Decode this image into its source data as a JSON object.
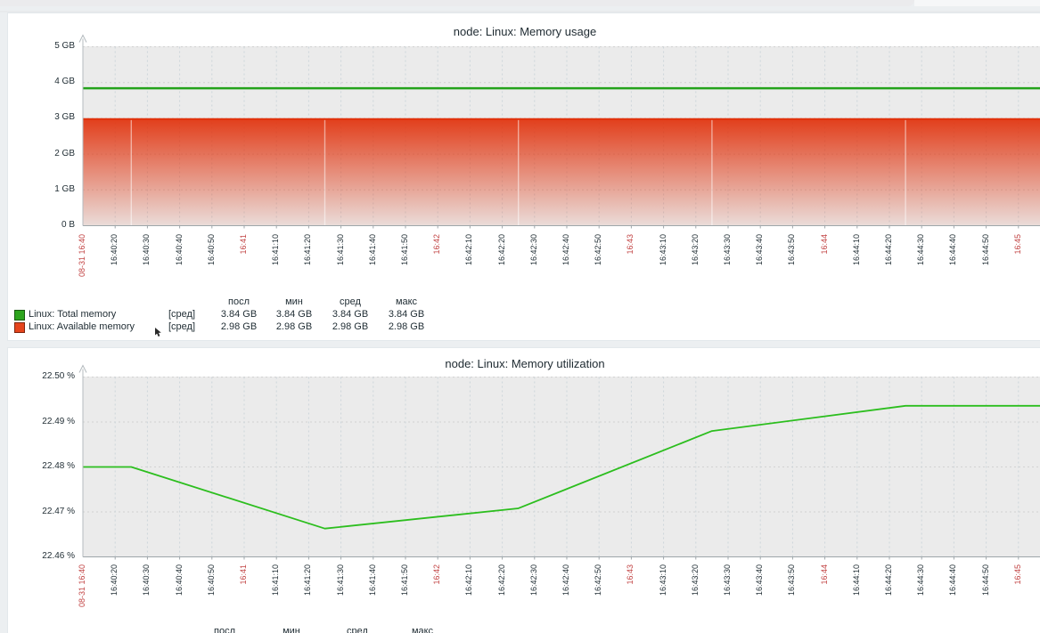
{
  "time_axis": {
    "start": "16:40:10",
    "seconds_per_tick": 10,
    "ticks": [
      {
        "t": "16:40:10",
        "label": "08-31 16:40",
        "red": true
      },
      {
        "t": "16:40:20",
        "label": "16:40:20",
        "red": false
      },
      {
        "t": "16:40:30",
        "label": "16:40:30",
        "red": false
      },
      {
        "t": "16:40:40",
        "label": "16:40:40",
        "red": false
      },
      {
        "t": "16:40:50",
        "label": "16:40:50",
        "red": false
      },
      {
        "t": "16:41:00",
        "label": "16:41",
        "red": true
      },
      {
        "t": "16:41:10",
        "label": "16:41:10",
        "red": false
      },
      {
        "t": "16:41:20",
        "label": "16:41:20",
        "red": false
      },
      {
        "t": "16:41:30",
        "label": "16:41:30",
        "red": false
      },
      {
        "t": "16:41:40",
        "label": "16:41:40",
        "red": false
      },
      {
        "t": "16:41:50",
        "label": "16:41:50",
        "red": false
      },
      {
        "t": "16:42:00",
        "label": "16:42",
        "red": true
      },
      {
        "t": "16:42:10",
        "label": "16:42:10",
        "red": false
      },
      {
        "t": "16:42:20",
        "label": "16:42:20",
        "red": false
      },
      {
        "t": "16:42:30",
        "label": "16:42:30",
        "red": false
      },
      {
        "t": "16:42:40",
        "label": "16:42:40",
        "red": false
      },
      {
        "t": "16:42:50",
        "label": "16:42:50",
        "red": false
      },
      {
        "t": "16:43:00",
        "label": "16:43",
        "red": true
      },
      {
        "t": "16:43:10",
        "label": "16:43:10",
        "red": false
      },
      {
        "t": "16:43:20",
        "label": "16:43:20",
        "red": false
      },
      {
        "t": "16:43:30",
        "label": "16:43:30",
        "red": false
      },
      {
        "t": "16:43:40",
        "label": "16:43:40",
        "red": false
      },
      {
        "t": "16:43:50",
        "label": "16:43:50",
        "red": false
      },
      {
        "t": "16:44:00",
        "label": "16:44",
        "red": true
      },
      {
        "t": "16:44:10",
        "label": "16:44:10",
        "red": false
      },
      {
        "t": "16:44:20",
        "label": "16:44:20",
        "red": false
      },
      {
        "t": "16:44:30",
        "label": "16:44:30",
        "red": false
      },
      {
        "t": "16:44:40",
        "label": "16:44:40",
        "red": false
      },
      {
        "t": "16:44:50",
        "label": "16:44:50",
        "red": false
      },
      {
        "t": "16:45:00",
        "label": "16:45",
        "red": true
      }
    ]
  },
  "chart_data": [
    {
      "type": "line",
      "title": "node: Linux: Memory usage",
      "xlabel": "",
      "ylabel": "",
      "ylim": [
        0,
        5
      ],
      "grid": true,
      "y_ticks": [
        {
          "value": 5,
          "label": "5 GB"
        },
        {
          "value": 4,
          "label": "4 GB"
        },
        {
          "value": 3,
          "label": "3 GB"
        },
        {
          "value": 2,
          "label": "2 GB"
        },
        {
          "value": 1,
          "label": "1 GB"
        },
        {
          "value": 0,
          "label": "0 B"
        }
      ],
      "series": [
        {
          "name": "Linux: Total memory",
          "style": "line",
          "color": "#24a31b",
          "points": [
            [
              "16:40:10",
              3.84
            ],
            [
              "16:45:07",
              3.84
            ]
          ]
        },
        {
          "name": "Linux: Available memory",
          "style": "gradient-area",
          "color": "#e1300a",
          "points": [
            [
              "16:40:10",
              2.98
            ],
            [
              "16:45:07",
              2.98
            ]
          ],
          "segment_marks": [
            "16:40:25",
            "16:41:25",
            "16:42:25",
            "16:43:25",
            "16:44:25"
          ]
        }
      ],
      "legend": {
        "headers": [
          "посл",
          "мин",
          "сред",
          "макс"
        ],
        "rows": [
          {
            "swatch": "#2ea51e",
            "label": "Linux: Total memory",
            "func": "[сред]",
            "values": [
              "3.84 GB",
              "3.84 GB",
              "3.84 GB",
              "3.84 GB"
            ]
          },
          {
            "swatch": "#e5441c",
            "label": "Linux: Available memory",
            "func": "[сред]",
            "values": [
              "2.98 GB",
              "2.98 GB",
              "2.98 GB",
              "2.98 GB"
            ]
          }
        ]
      }
    },
    {
      "type": "line",
      "title": "node: Linux: Memory utilization",
      "xlabel": "",
      "ylabel": "",
      "ylim": [
        22.46,
        22.5
      ],
      "grid": true,
      "y_ticks": [
        {
          "value": 22.5,
          "label": "22.50 %"
        },
        {
          "value": 22.49,
          "label": "22.49 %"
        },
        {
          "value": 22.48,
          "label": "22.48 %"
        },
        {
          "value": 22.47,
          "label": "22.47 %"
        },
        {
          "value": 22.46,
          "label": "22.46 %"
        }
      ],
      "series": [
        {
          "name": "Linux: Memory utilization",
          "style": "line",
          "color": "#2cbe1e",
          "points": [
            [
              "16:40:10",
              22.48
            ],
            [
              "16:40:25",
              22.48
            ],
            [
              "16:41:25",
              22.4663
            ],
            [
              "16:42:25",
              22.4708
            ],
            [
              "16:43:25",
              22.488
            ],
            [
              "16:44:25",
              22.4936
            ],
            [
              "16:45:07",
              22.4936
            ]
          ]
        }
      ],
      "legend": {
        "headers": [
          "посл",
          "мин",
          "сред",
          "макс"
        ],
        "rows": []
      }
    }
  ]
}
